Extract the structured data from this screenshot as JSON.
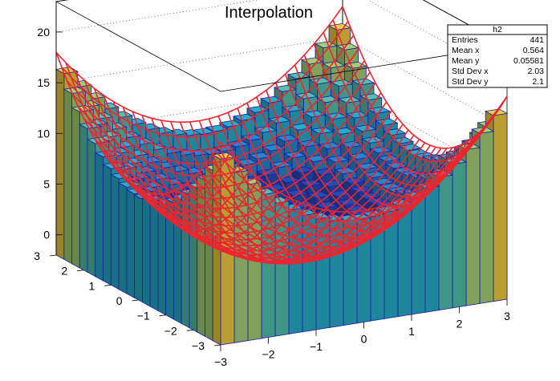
{
  "chart_data": {
    "type": "lego3d",
    "title": "Interpolation",
    "x_range": [
      -3,
      3
    ],
    "y_range": [
      -3,
      3
    ],
    "z_range": [
      -2,
      23
    ],
    "x_ticks": [
      -3,
      -2,
      -1,
      0,
      1,
      2,
      3
    ],
    "y_ticks": [
      -3,
      -2,
      -1,
      0,
      1,
      2,
      3
    ],
    "z_ticks": [
      0,
      5,
      10,
      15,
      20
    ],
    "bins_per_axis": 21,
    "function": "x^2 + y^2",
    "histogram_style": "LEGO2 (colored bars by height, blue edges)",
    "overlay_surface_style": "SURF red mesh",
    "palette": [
      "#1a237e",
      "#1f4aa8",
      "#2380c0",
      "#24a5be",
      "#4db7a5",
      "#9bc56e",
      "#e2c23c",
      "#fbd036"
    ],
    "mesh_color": "#f0242e",
    "edge_color": "#1c1cad",
    "stats": {
      "name": "h2",
      "rows": [
        {
          "label": "Entries",
          "value": "441"
        },
        {
          "label": "Mean x",
          "value": "0.564"
        },
        {
          "label": "Mean y",
          "value": "0.05581"
        },
        {
          "label": "Std Dev x",
          "value": "2.03"
        },
        {
          "label": "Std Dev y",
          "value": "2.1"
        }
      ]
    }
  }
}
